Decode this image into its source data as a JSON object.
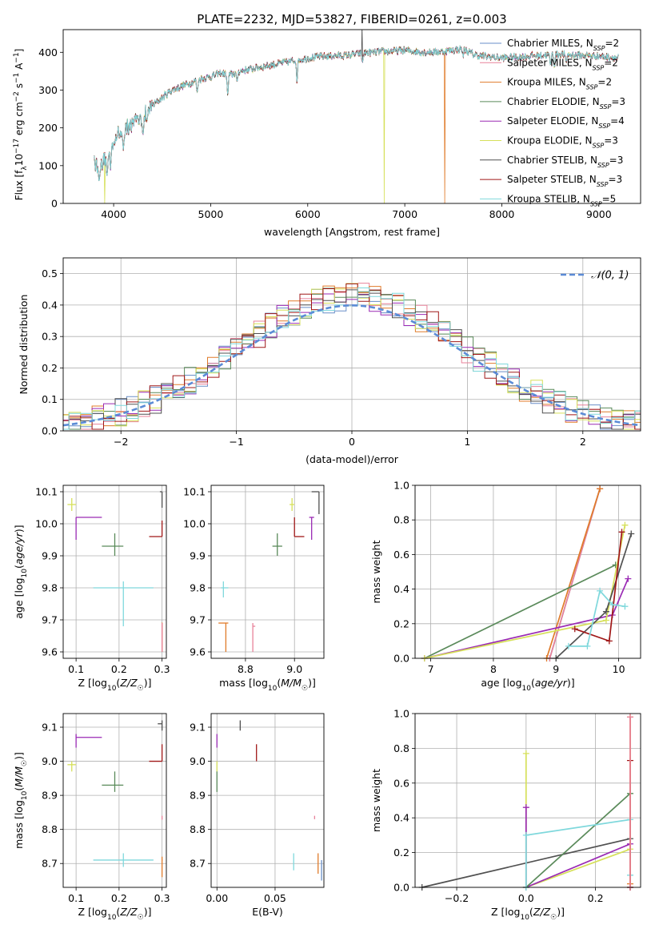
{
  "figure_title": "PLATE=2232, MJD=53827, FIBERID=0261, z=0.003",
  "colors": {
    "Chabrier MILES": "#6a8fc8",
    "Salpeter MILES": "#e8829a",
    "Kroupa MILES": "#e07b2a",
    "Chabrier ELODIE": "#5a8a5a",
    "Salpeter ELODIE": "#9a2ab4",
    "Kroupa ELODIE": "#d6e05a",
    "Chabrier STELIB": "#505050",
    "Salpeter STELIB": "#a01818",
    "Kroupa STELIB": "#7fd8dc"
  },
  "chart_data": [
    {
      "id": "spectrum",
      "type": "line",
      "title": "PLATE=2232, MJD=53827, FIBERID=0261, z=0.003",
      "xlabel": "wavelength [Angstrom, rest frame]",
      "ylabel": "Flux [f_λ 10^-17 erg cm^-2 s^-1 A^-1]",
      "xlim": [
        3480,
        9430
      ],
      "ylim": [
        0,
        460
      ],
      "xticks": [
        4000,
        5000,
        6000,
        7000,
        8000,
        9000
      ],
      "yticks": [
        0,
        100,
        200,
        300,
        400
      ],
      "grid": false,
      "legend_position": "top-right",
      "legend": [
        {
          "name": "Chabrier MILES",
          "sub": "SSP",
          "n": "2"
        },
        {
          "name": "Salpeter MILES",
          "sub": "SSP",
          "n": "2"
        },
        {
          "name": "Kroupa MILES",
          "sub": "SSP",
          "n": "2"
        },
        {
          "name": "Chabrier ELODIE",
          "sub": "SSP",
          "n": "3"
        },
        {
          "name": "Salpeter ELODIE",
          "sub": "SSP",
          "n": "4"
        },
        {
          "name": "Kroupa ELODIE",
          "sub": "SSP",
          "n": "3"
        },
        {
          "name": "Chabrier STELIB",
          "sub": "SSP",
          "n": "3"
        },
        {
          "name": "Salpeter STELIB",
          "sub": "SSP",
          "n": "3"
        },
        {
          "name": "Kroupa STELIB",
          "sub": "SSP",
          "n": "5"
        }
      ],
      "continuum": [
        [
          3800,
          120
        ],
        [
          3850,
          80
        ],
        [
          3900,
          110
        ],
        [
          3950,
          130
        ],
        [
          4000,
          170
        ],
        [
          4100,
          190
        ],
        [
          4200,
          215
        ],
        [
          4300,
          230
        ],
        [
          4400,
          260
        ],
        [
          4500,
          280
        ],
        [
          4600,
          300
        ],
        [
          4700,
          310
        ],
        [
          4800,
          320
        ],
        [
          4900,
          330
        ],
        [
          5000,
          335
        ],
        [
          5100,
          345
        ],
        [
          5200,
          340
        ],
        [
          5300,
          350
        ],
        [
          5400,
          355
        ],
        [
          5500,
          360
        ],
        [
          5600,
          365
        ],
        [
          5700,
          370
        ],
        [
          5800,
          375
        ],
        [
          5900,
          380
        ],
        [
          6000,
          385
        ],
        [
          6200,
          390
        ],
        [
          6400,
          392
        ],
        [
          6600,
          398
        ],
        [
          6800,
          402
        ],
        [
          7000,
          405
        ],
        [
          7200,
          400
        ],
        [
          7400,
          402
        ],
        [
          7600,
          410
        ],
        [
          7700,
          395
        ],
        [
          7800,
          390
        ],
        [
          8000,
          385
        ],
        [
          8200,
          388
        ],
        [
          8400,
          392
        ],
        [
          8600,
          395
        ],
        [
          8800,
          392
        ],
        [
          9000,
          390
        ],
        [
          9200,
          385
        ]
      ],
      "absorption_lines": [
        [
          3934,
          55
        ],
        [
          3969,
          50
        ],
        [
          4102,
          40
        ],
        [
          4304,
          45
        ],
        [
          4340,
          35
        ],
        [
          4861,
          35
        ],
        [
          5175,
          60
        ],
        [
          5270,
          30
        ],
        [
          5890,
          55
        ],
        [
          6563,
          25
        ],
        [
          7600,
          20
        ],
        [
          8500,
          30
        ],
        [
          8542,
          30
        ],
        [
          8662,
          28
        ]
      ],
      "outlier_dips": [
        {
          "series": "Kroupa ELODIE",
          "x": 3910,
          "y": 0
        },
        {
          "series": "Kroupa ELODIE",
          "x": 6790,
          "y": 0
        },
        {
          "series": "Kroupa MILES",
          "x": 7410,
          "y": 0
        },
        {
          "series": "Chabrier STELIB",
          "x": 6560,
          "y": 470
        }
      ]
    },
    {
      "id": "residual_histogram",
      "type": "step-histogram",
      "xlabel": "(data-model)/error",
      "ylabel": "Normed distribution",
      "xlim": [
        -2.5,
        2.5
      ],
      "ylim": [
        0,
        0.55
      ],
      "xticks": [
        -2,
        -1,
        0,
        1,
        2
      ],
      "yticks": [
        0.0,
        0.1,
        0.2,
        0.3,
        0.4,
        0.5
      ],
      "grid": true,
      "bin_width": 0.1,
      "legend_position": "top-right",
      "legend": [
        {
          "name": "𝒩(0, 1)",
          "style": "dashed",
          "color": "#5b8bd6"
        }
      ],
      "gaussian": {
        "mean": 0,
        "sigma": 1
      }
    },
    {
      "id": "age_vs_Z",
      "type": "errorbar",
      "xlabel": "Z [log10(Z/Z☉)]",
      "ylabel": "age  [log10(age/yr)]",
      "xlim": [
        0.07,
        0.31
      ],
      "ylim": [
        9.58,
        10.12
      ],
      "xticks": [
        0.1,
        0.2,
        0.3
      ],
      "yticks": [
        9.6,
        9.7,
        9.8,
        9.9,
        10.0,
        10.1
      ],
      "grid": true,
      "points": [
        {
          "series": "Kroupa ELODIE",
          "x": 0.09,
          "y": 10.06,
          "xlo": 0.08,
          "xhi": 0.1,
          "ylo": 10.04,
          "yhi": 10.08
        },
        {
          "series": "Salpeter ELODIE",
          "x": 0.1,
          "y": 10.02,
          "xlo": 0.1,
          "xhi": 0.16,
          "ylo": 9.95,
          "yhi": 10.02
        },
        {
          "series": "Chabrier ELODIE",
          "x": 0.19,
          "y": 9.93,
          "xlo": 0.16,
          "xhi": 0.21,
          "ylo": 9.9,
          "yhi": 9.97
        },
        {
          "series": "Chabrier STELIB",
          "x": 0.3,
          "y": 10.1,
          "xlo": 0.295,
          "xhi": 0.3,
          "ylo": 10.05,
          "yhi": 10.1
        },
        {
          "series": "Salpeter STELIB",
          "x": 0.3,
          "y": 9.96,
          "xlo": 0.27,
          "xhi": 0.3,
          "ylo": 9.96,
          "yhi": 10.01
        },
        {
          "series": "Kroupa STELIB",
          "x": 0.21,
          "y": 9.8,
          "xlo": 0.14,
          "xhi": 0.28,
          "ylo": 9.68,
          "yhi": 9.82
        },
        {
          "series": "Kroupa MILES",
          "x": 0.3,
          "y": 9.69,
          "xlo": 0.299,
          "xhi": 0.301,
          "ylo": 9.6,
          "yhi": 9.69
        },
        {
          "series": "Salpeter MILES",
          "x": 0.3,
          "y": 9.68,
          "xlo": 0.299,
          "xhi": 0.301,
          "ylo": 9.6,
          "yhi": 9.69
        }
      ]
    },
    {
      "id": "age_vs_mass",
      "type": "errorbar",
      "xlabel": "mass [log10(M/M☉)]",
      "ylabel": "",
      "xlim": [
        8.66,
        9.12
      ],
      "ylim": [
        9.58,
        10.12
      ],
      "xticks": [
        8.8,
        9.0
      ],
      "yticks": [
        9.6,
        9.7,
        9.8,
        9.9,
        10.0,
        10.1
      ],
      "grid": true,
      "points": [
        {
          "series": "Kroupa ELODIE",
          "x": 8.99,
          "y": 10.06,
          "xlo": 8.98,
          "xhi": 9.0,
          "ylo": 10.04,
          "yhi": 10.08
        },
        {
          "series": "Salpeter ELODIE",
          "x": 9.07,
          "y": 10.02,
          "xlo": 9.06,
          "xhi": 9.08,
          "ylo": 9.95,
          "yhi": 10.02
        },
        {
          "series": "Chabrier ELODIE",
          "x": 8.93,
          "y": 9.93,
          "xlo": 8.91,
          "xhi": 8.95,
          "ylo": 9.9,
          "yhi": 9.97
        },
        {
          "series": "Chabrier STELIB",
          "x": 9.1,
          "y": 10.1,
          "xlo": 9.07,
          "xhi": 9.1,
          "ylo": 10.03,
          "yhi": 10.1
        },
        {
          "series": "Salpeter STELIB",
          "x": 9.0,
          "y": 9.96,
          "xlo": 9.0,
          "xhi": 9.04,
          "ylo": 9.96,
          "yhi": 10.02
        },
        {
          "series": "Kroupa STELIB",
          "x": 8.71,
          "y": 9.8,
          "xlo": 8.7,
          "xhi": 8.73,
          "ylo": 9.77,
          "yhi": 9.82
        },
        {
          "series": "Kroupa MILES",
          "x": 8.72,
          "y": 9.69,
          "xlo": 8.69,
          "xhi": 8.73,
          "ylo": 9.6,
          "yhi": 9.69
        },
        {
          "series": "Salpeter MILES",
          "x": 8.83,
          "y": 9.68,
          "xlo": 8.83,
          "xhi": 8.84,
          "ylo": 9.6,
          "yhi": 9.69
        }
      ]
    },
    {
      "id": "mass_weight_vs_age",
      "type": "line",
      "xlabel": "age  [log10(age/yr)]",
      "ylabel": "mass weight",
      "xlim": [
        6.75,
        10.35
      ],
      "ylim": [
        0,
        1.0
      ],
      "xticks": [
        7,
        8,
        9,
        10
      ],
      "yticks": [
        0.0,
        0.2,
        0.4,
        0.6,
        0.8,
        1.0
      ],
      "grid": true,
      "series": [
        {
          "name": "Chabrier MILES",
          "x": [
            8.9,
            9.7
          ],
          "y": [
            0.0,
            0.98
          ]
        },
        {
          "name": "Salpeter MILES",
          "x": [
            8.9,
            9.7
          ],
          "y": [
            0.0,
            0.98
          ]
        },
        {
          "name": "Kroupa MILES",
          "x": [
            8.85,
            9.7
          ],
          "y": [
            0.0,
            0.98
          ]
        },
        {
          "name": "Chabrier ELODIE",
          "x": [
            6.9,
            9.95
          ],
          "y": [
            0.0,
            0.54
          ]
        },
        {
          "name": "Salpeter ELODIE",
          "x": [
            6.9,
            9.9,
            10.15
          ],
          "y": [
            0.0,
            0.25,
            0.46
          ]
        },
        {
          "name": "Kroupa ELODIE",
          "x": [
            6.9,
            9.8,
            10.1
          ],
          "y": [
            0.0,
            0.22,
            0.77
          ]
        },
        {
          "name": "Chabrier STELIB",
          "x": [
            9.0,
            9.8,
            10.2
          ],
          "y": [
            0.0,
            0.27,
            0.72
          ]
        },
        {
          "name": "Salpeter STELIB",
          "x": [
            9.3,
            9.85,
            10.05
          ],
          "y": [
            0.17,
            0.1,
            0.73
          ]
        },
        {
          "name": "Kroupa STELIB",
          "x": [
            9.2,
            9.5,
            9.7,
            9.9,
            10.1
          ],
          "y": [
            0.07,
            0.07,
            0.39,
            0.31,
            0.3
          ]
        }
      ]
    },
    {
      "id": "mass_vs_Z",
      "type": "errorbar",
      "xlabel": "Z [log10(Z/Z☉)]",
      "ylabel": "mass [log10(M/M☉)]",
      "xlim": [
        0.07,
        0.31
      ],
      "ylim": [
        8.63,
        9.14
      ],
      "xticks": [
        0.1,
        0.2,
        0.3
      ],
      "yticks": [
        8.7,
        8.8,
        8.9,
        9.0,
        9.1
      ],
      "grid": true,
      "points": [
        {
          "series": "Kroupa ELODIE",
          "x": 0.09,
          "y": 8.99,
          "xlo": 0.08,
          "xhi": 0.1,
          "ylo": 8.97,
          "yhi": 9.0
        },
        {
          "series": "Salpeter ELODIE",
          "x": 0.1,
          "y": 9.07,
          "xlo": 0.1,
          "xhi": 0.16,
          "ylo": 9.04,
          "yhi": 9.08
        },
        {
          "series": "Chabrier ELODIE",
          "x": 0.19,
          "y": 8.93,
          "xlo": 0.16,
          "xhi": 0.21,
          "ylo": 8.91,
          "yhi": 8.97
        },
        {
          "series": "Chabrier STELIB",
          "x": 0.3,
          "y": 9.11,
          "xlo": 0.29,
          "xhi": 0.3,
          "ylo": 9.09,
          "yhi": 9.12
        },
        {
          "series": "Salpeter STELIB",
          "x": 0.3,
          "y": 9.0,
          "xlo": 0.27,
          "xhi": 0.3,
          "ylo": 9.0,
          "yhi": 9.05
        },
        {
          "series": "Kroupa STELIB",
          "x": 0.21,
          "y": 8.71,
          "xlo": 0.14,
          "xhi": 0.28,
          "ylo": 8.69,
          "yhi": 8.73
        },
        {
          "series": "Kroupa MILES",
          "x": 0.3,
          "y": 8.71,
          "xlo": 0.299,
          "xhi": 0.301,
          "ylo": 8.66,
          "yhi": 8.72
        },
        {
          "series": "Salpeter MILES",
          "x": 0.3,
          "y": 8.83,
          "xlo": 0.299,
          "xhi": 0.301,
          "ylo": 8.83,
          "yhi": 8.84
        }
      ]
    },
    {
      "id": "mass_vs_EBV",
      "type": "errorbar",
      "xlabel": "E(B-V)",
      "ylabel": "",
      "xlim": [
        -0.005,
        0.092
      ],
      "ylim": [
        8.63,
        9.14
      ],
      "xticks": [
        0.0,
        0.05
      ],
      "xticklabels": [
        "0.00",
        "0.05"
      ],
      "yticks": [
        8.7,
        8.8,
        8.9,
        9.0,
        9.1
      ],
      "grid": true,
      "points": [
        {
          "series": "Salpeter ELODIE",
          "x": 0.0,
          "y": 9.07,
          "xlo": 0.0,
          "xhi": 0.0,
          "ylo": 9.04,
          "yhi": 9.08
        },
        {
          "series": "Kroupa ELODIE",
          "x": 0.0,
          "y": 8.99,
          "xlo": 0.0,
          "xhi": 0.0,
          "ylo": 8.97,
          "yhi": 9.0
        },
        {
          "series": "Chabrier ELODIE",
          "x": 0.0,
          "y": 8.93,
          "xlo": 0.0,
          "xhi": 0.0,
          "ylo": 8.91,
          "yhi": 8.97
        },
        {
          "series": "Chabrier STELIB",
          "x": 0.02,
          "y": 9.11,
          "xlo": 0.02,
          "xhi": 0.02,
          "ylo": 9.09,
          "yhi": 9.12
        },
        {
          "series": "Salpeter STELIB",
          "x": 0.034,
          "y": 9.03,
          "xlo": 0.034,
          "xhi": 0.034,
          "ylo": 9.0,
          "yhi": 9.05
        },
        {
          "series": "Salpeter MILES",
          "x": 0.084,
          "y": 8.84,
          "xlo": 0.084,
          "xhi": 0.084,
          "ylo": 8.83,
          "yhi": 8.84
        },
        {
          "series": "Kroupa STELIB",
          "x": 0.066,
          "y": 8.71,
          "xlo": 0.066,
          "xhi": 0.066,
          "ylo": 8.68,
          "yhi": 8.73
        },
        {
          "series": "Kroupa MILES",
          "x": 0.087,
          "y": 8.71,
          "xlo": 0.087,
          "xhi": 0.087,
          "ylo": 8.67,
          "yhi": 8.73
        },
        {
          "series": "Chabrier MILES",
          "x": 0.09,
          "y": 8.7,
          "xlo": 0.09,
          "xhi": 0.09,
          "ylo": 8.65,
          "yhi": 8.71
        }
      ]
    },
    {
      "id": "mass_weight_vs_Z",
      "type": "line",
      "xlabel": "Z [log10(Z/Z☉)]",
      "ylabel": "mass weight",
      "xlim": [
        -0.32,
        0.33
      ],
      "ylim": [
        0,
        1.0
      ],
      "xticks": [
        -0.2,
        0.0,
        0.2
      ],
      "xticklabels": [
        "−0.2",
        "0.0",
        "0.2"
      ],
      "yticks": [
        0.0,
        0.2,
        0.4,
        0.6,
        0.8,
        1.0
      ],
      "grid": true,
      "series": [
        {
          "name": "Chabrier STELIB",
          "x": [
            -0.3,
            0.3
          ],
          "y": [
            0.0,
            0.28
          ]
        },
        {
          "name": "Kroupa ELODIE",
          "x": [
            0.0,
            0.0,
            0.3,
            0.3
          ],
          "y": [
            0.77,
            0.0,
            0.22,
            0.0
          ]
        },
        {
          "name": "Salpeter ELODIE",
          "x": [
            0.0,
            0.0,
            0.3,
            0.3
          ],
          "y": [
            0.46,
            0.0,
            0.25,
            0.0
          ]
        },
        {
          "name": "Chabrier ELODIE",
          "x": [
            0.0,
            0.3,
            0.3
          ],
          "y": [
            0.0,
            0.54,
            0.0
          ]
        },
        {
          "name": "Kroupa STELIB",
          "x": [
            0.0,
            0.0,
            0.3,
            0.3
          ],
          "y": [
            0.0,
            0.3,
            0.39,
            0.07
          ]
        },
        {
          "name": "Salpeter STELIB",
          "x": [
            0.3,
            0.3
          ],
          "y": [
            0.0,
            0.73
          ]
        },
        {
          "name": "Kroupa MILES",
          "x": [
            0.3,
            0.3
          ],
          "y": [
            0.02,
            0.98
          ]
        },
        {
          "name": "Salpeter MILES",
          "x": [
            0.3,
            0.3
          ],
          "y": [
            0.0,
            0.98
          ]
        }
      ]
    }
  ]
}
